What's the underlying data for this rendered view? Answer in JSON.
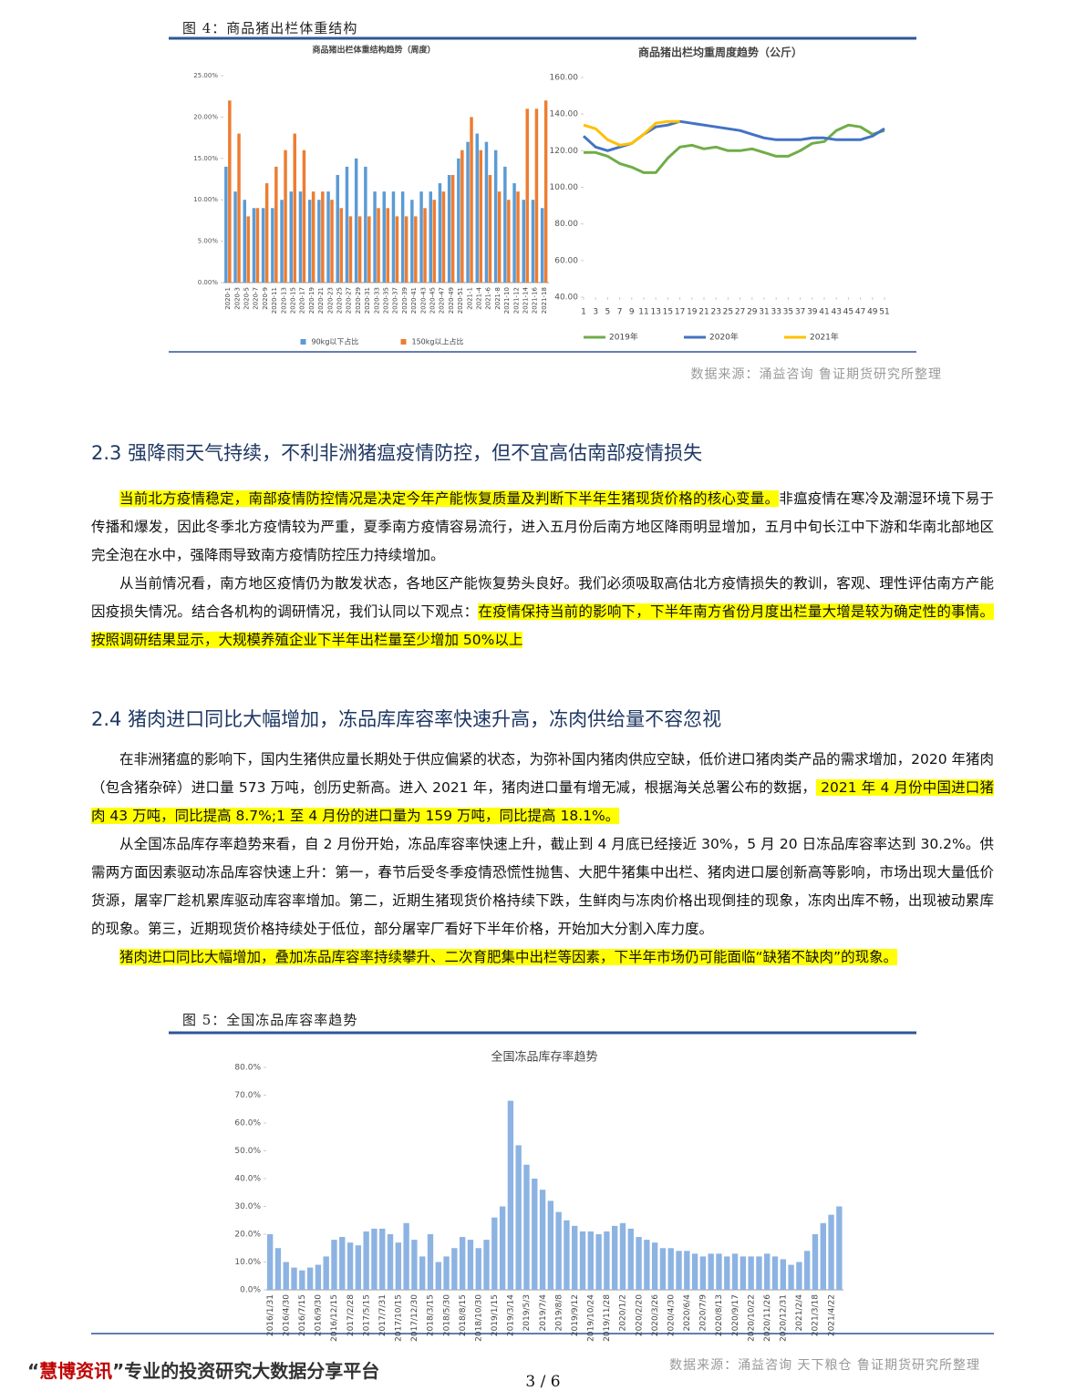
{
  "document": {
    "figure4_caption": "图 4：商品猪出栏体重结构",
    "figure4_source": "数据来源：涌益咨询 鲁证期货研究所整理",
    "sections": [
      {
        "heading": "2.3 强降雨天气持续，不利非洲猪瘟疫情防控，但不宜高估南部疫情损失",
        "paragraphs": [
          [
            {
              "text": "当前北方疫情稳定，南部疫情防控情况是决定今年产能恢复质量及判断下半年生猪现货价格的核心变量。",
              "highlight": true
            },
            {
              "text": "非瘟疫情在寒冷及潮湿环境下易于传播和爆发，因此冬季北方疫情较为严重，夏季南方疫情容易流行，进入五月份后南方地区降雨明显增加，五月中旬长江中下游和华南北部地区完全泡在水中，强降雨导致南方疫情防控压力持续增加。",
              "highlight": false
            }
          ],
          [
            {
              "text": "从当前情况看，南方地区疫情仍为散发状态，各地区产能恢复势头良好。我们必须吸取高估北方疫情损失的教训，客观、理性评估南方产能因疫损失情况。结合各机构的调研情况，我们认同以下观点：",
              "highlight": false
            },
            {
              "text": "在疫情保持当前的影响下，下半年南方省份月度出栏量大增是较为确定性的事情。按照调研结果显示，大规模养殖企业下半年出栏量至少增加 50%以上",
              "highlight": true
            }
          ]
        ]
      },
      {
        "heading": "2.4 猪肉进口同比大幅增加，冻品库库容率快速升高，冻肉供给量不容忽视",
        "paragraphs": [
          [
            {
              "text": "在非洲猪瘟的影响下，国内生猪供应量长期处于供应偏紧的状态，为弥补国内猪肉供应空缺，低价进口猪肉类产品的需求增加，2020 年猪肉（包含猪杂碎）进口量 573 万吨，创历史新高。进入 2021 年，猪肉进口量有增无减，根据海关总署公布的数据，",
              "highlight": false
            },
            {
              "text": " 2021 年 4 月份中国进口猪肉 43 万吨，同比提高 8.7%;1 至 4 月份的进口量为 159 万吨，同比提高 18.1%。",
              "highlight": true
            }
          ],
          [
            {
              "text": "从全国冻品库存率趋势来看，自 2 月份开始，冻品库容率快速上升，截止到 4 月底已经接近 30%，5 月 20 日冻品库容率达到 30.2%。供需两方面因素驱动冻品库容快速上升：第一，春节后受冬季疫情恐慌性抛售、大肥牛猪集中出栏、猪肉进口屡创新高等影响，市场出现大量低价货源，屠宰厂趁机累库驱动库容率增加。第二，近期生猪现货价格持续下跌，生鲜肉与冻肉价格出现倒挂的现象，冻肉出库不畅，出现被动累库的现象。第三，近期现货价格持续处于低位，部分屠宰厂看好下半年价格，开始加大分割入库力度。",
              "highlight": false
            }
          ],
          [
            {
              "text": "猪肉进口同比大幅增加，叠加冻品库容率持续攀升、二次育肥集中出栏等因素，下半年市场仍可能面临“缺猪不缺肉”的现象。",
              "highlight": true
            }
          ]
        ]
      }
    ],
    "figure5_caption": "图 5：全国冻品库容率趋势",
    "figure5_source": "数据来源：涌益咨询 天下粮仓 鲁证期货研究所整理",
    "footer": {
      "quote_open": "“",
      "brand": "慧博资讯",
      "slogan": "”专业的投资研究大数据分享平台",
      "page_number": "3 / 6"
    }
  },
  "chart_data": [
    {
      "type": "bar",
      "title": "商品猪出栏体重结构趋势（周度）",
      "categories": [
        "2020-1",
        "2020-3",
        "2020-5",
        "2020-7",
        "2020-9",
        "2020-11",
        "2020-13",
        "2020-15",
        "2020-17",
        "2020-19",
        "2020-21",
        "2020-23",
        "2020-25",
        "2020-27",
        "2020-29",
        "2020-31",
        "2020-33",
        "2020-35",
        "2020-37",
        "2020-39",
        "2020-41",
        "2020-43",
        "2020-45",
        "2020-47",
        "2020-49",
        "2020-51",
        "2021-1",
        "2021-4",
        "2021-6",
        "2021-8",
        "2021-10",
        "2021-12",
        "2021-14",
        "2021-16",
        "2021-18"
      ],
      "series": [
        {
          "name": "90kg以下占比",
          "color": "#5b9bd5",
          "values": [
            14,
            11,
            10,
            9,
            9,
            9,
            10,
            11,
            11,
            10,
            10,
            11,
            13,
            14,
            15,
            14,
            11,
            11,
            11,
            11,
            10,
            11,
            11,
            12,
            13,
            15,
            17,
            18,
            17,
            16,
            14,
            12,
            10,
            10,
            9
          ]
        },
        {
          "name": "150kg以上占比",
          "color": "#ed7d31",
          "values": [
            22,
            18,
            8,
            9,
            12,
            14,
            16,
            18,
            16,
            11,
            11,
            10,
            9,
            8,
            8,
            8,
            9,
            9,
            8,
            8,
            8,
            9,
            10,
            11,
            13,
            16,
            20,
            16,
            13,
            11,
            10,
            11,
            21,
            21,
            22
          ]
        }
      ],
      "ylim": [
        0,
        25
      ],
      "yticks": [
        {
          "value": 0,
          "label": "0.00%"
        },
        {
          "value": 5,
          "label": "5.00%"
        },
        {
          "value": 10,
          "label": "10.00%"
        },
        {
          "value": 15,
          "label": "15.00%"
        },
        {
          "value": 20,
          "label": "20.00%"
        },
        {
          "value": 25,
          "label": "25.00%"
        }
      ],
      "grid": false,
      "legend": "bottom"
    },
    {
      "type": "line",
      "title": "商品猪出栏均重周度趋势（公斤）",
      "x": [
        1,
        3,
        5,
        7,
        9,
        11,
        13,
        15,
        17,
        19,
        21,
        23,
        25,
        27,
        29,
        31,
        33,
        35,
        37,
        39,
        41,
        43,
        45,
        47,
        49,
        51
      ],
      "xlim": [
        1,
        51
      ],
      "xticks": [
        1,
        3,
        5,
        7,
        9,
        11,
        13,
        15,
        17,
        19,
        21,
        23,
        25,
        27,
        29,
        31,
        33,
        35,
        37,
        39,
        41,
        43,
        45,
        47,
        49,
        51
      ],
      "series": [
        {
          "name": "2019年",
          "color": "#70ad47",
          "values": [
            119,
            119,
            117,
            113,
            111,
            108,
            108,
            116,
            122,
            123,
            121,
            122,
            120,
            120,
            121,
            119,
            117,
            117,
            120,
            124,
            125,
            131,
            134,
            133,
            129,
            131
          ]
        },
        {
          "name": "2020年",
          "color": "#4472c4",
          "values": [
            128,
            122,
            120,
            122,
            124,
            129,
            133,
            134,
            136,
            135,
            134,
            133,
            132,
            131,
            129,
            127,
            126,
            126,
            126,
            127,
            127,
            126,
            126,
            126,
            128,
            132
          ]
        },
        {
          "name": "2021年",
          "color": "#ffc000",
          "values": [
            134,
            132,
            126,
            123,
            124,
            129,
            135,
            136,
            136,
            null,
            null,
            null,
            null,
            null,
            null,
            null,
            null,
            null,
            null,
            null,
            null,
            null,
            null,
            null,
            null,
            null
          ]
        }
      ],
      "ylim": [
        40,
        160
      ],
      "yticks": [
        {
          "value": 40,
          "label": "40.00"
        },
        {
          "value": 60,
          "label": "60.00"
        },
        {
          "value": 80,
          "label": "80.00"
        },
        {
          "value": 100,
          "label": "100.00"
        },
        {
          "value": 120,
          "label": "120.00"
        },
        {
          "value": 140,
          "label": "140.00"
        },
        {
          "value": 160,
          "label": "160.00"
        }
      ],
      "grid": false,
      "legend": "bottom"
    },
    {
      "type": "bar",
      "title": "全国冻品库存率趋势",
      "categories": [
        "2016/1/31",
        null,
        "2016/4/30",
        null,
        "2016/7/15",
        null,
        "2016/9/30",
        null,
        "2016/12/15",
        null,
        "2017/2/28",
        null,
        "2017/5/15",
        null,
        "2017/7/31",
        null,
        "2017/10/15",
        null,
        "2017/12/30",
        null,
        "2018/3/15",
        null,
        "2018/5/30",
        null,
        "2018/8/15",
        null,
        "2018/10/30",
        null,
        "2019/1/15",
        null,
        "2019/3/14",
        null,
        "2019/5/3",
        null,
        "2019/7/4",
        null,
        "2019/8/8",
        null,
        "2019/9/12",
        null,
        "2019/10/24",
        null,
        "2019/11/28",
        null,
        "2020/1/2",
        null,
        "2020/2/20",
        null,
        "2020/3/26",
        null,
        "2020/4/30",
        null,
        "2020/6/4",
        null,
        "2020/7/9",
        null,
        "2020/8/13",
        null,
        "2020/9/17",
        null,
        "2020/10/22",
        null,
        "2020/11/26",
        null,
        "2020/12/31",
        null,
        "2021/2/4",
        null,
        "2021/3/18",
        null,
        "2021/4/22",
        null
      ],
      "values": [
        20,
        15,
        10,
        8,
        7,
        8,
        9,
        12,
        18,
        19,
        17,
        16,
        21,
        22,
        22,
        20,
        17,
        24,
        18,
        12,
        20,
        10,
        12,
        15,
        19,
        18,
        15,
        18,
        26,
        30,
        68,
        52,
        45,
        40,
        36,
        32,
        28,
        25,
        23,
        21,
        21,
        20,
        21,
        23,
        24,
        22,
        19,
        18,
        17,
        15,
        15,
        14,
        14,
        13,
        12,
        13,
        13,
        12,
        13,
        12,
        12,
        12,
        13,
        12,
        11,
        9,
        10,
        14,
        20,
        24,
        27,
        30
      ],
      "color": "#8db3e2",
      "ylim": [
        0,
        80
      ],
      "yticks": [
        {
          "value": 0,
          "label": "0.0%"
        },
        {
          "value": 10,
          "label": "10.0%"
        },
        {
          "value": 20,
          "label": "20.0%"
        },
        {
          "value": 30,
          "label": "30.0%"
        },
        {
          "value": 40,
          "label": "40.0%"
        },
        {
          "value": 50,
          "label": "50.0%"
        },
        {
          "value": 60,
          "label": "60.0%"
        },
        {
          "value": 70,
          "label": "70.0%"
        },
        {
          "value": 80,
          "label": "80.0%"
        }
      ],
      "grid": false
    }
  ]
}
